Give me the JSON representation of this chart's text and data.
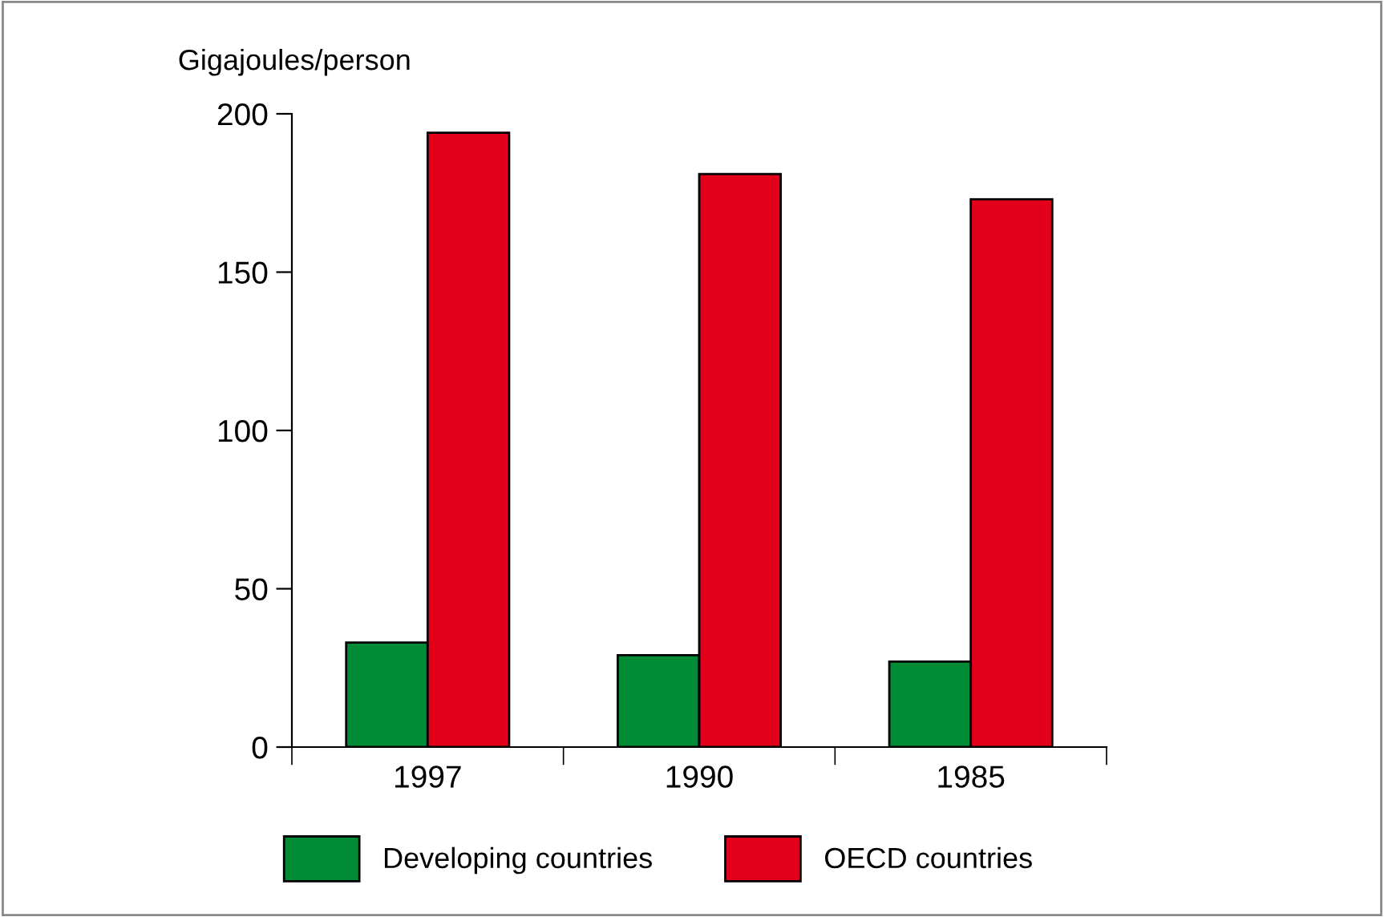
{
  "chart_data": {
    "type": "bar",
    "ylabel": "Gigajoules/person",
    "categories": [
      "1997",
      "1990",
      "1985"
    ],
    "series": [
      {
        "name": "Developing countries",
        "color": "#008c36",
        "values": [
          33,
          29,
          27
        ]
      },
      {
        "name": "OECD countries",
        "color": "#e2001a",
        "values": [
          194,
          181,
          173
        ]
      }
    ],
    "ylim": [
      0,
      200
    ],
    "yticks": [
      0,
      50,
      100,
      150,
      200
    ],
    "grid": false,
    "legend": "bottom"
  }
}
